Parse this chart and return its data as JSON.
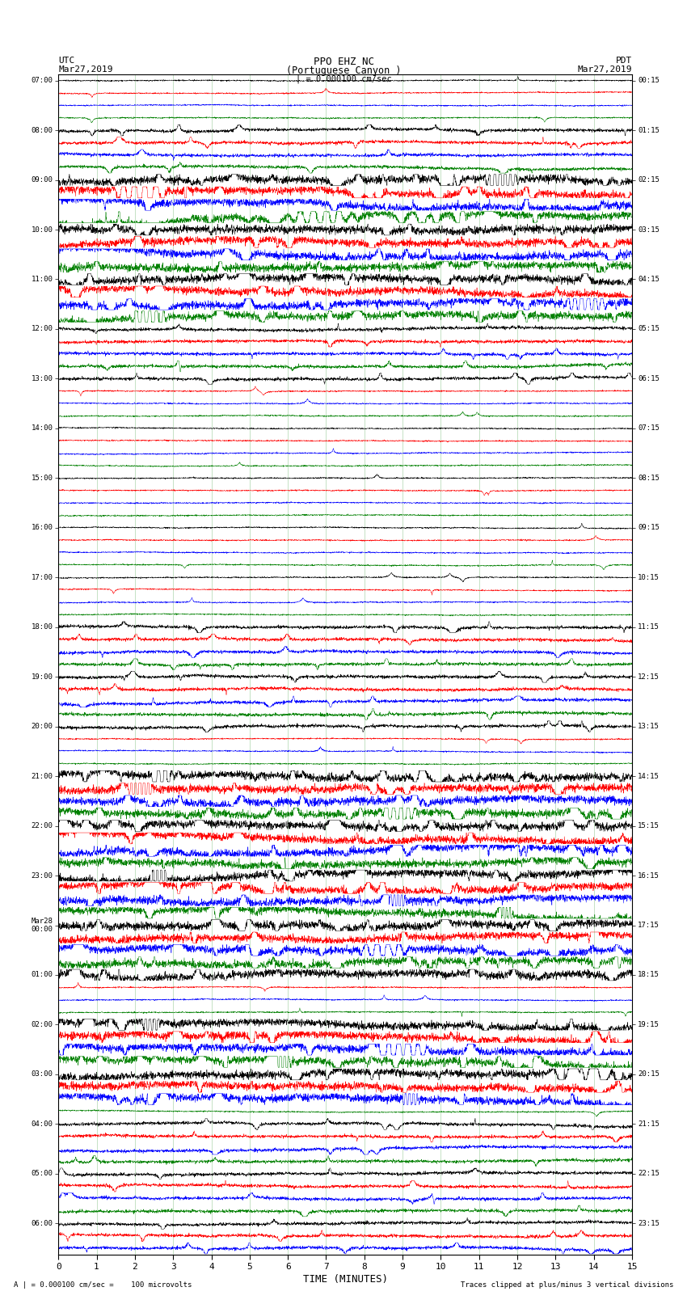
{
  "title_line1": "PPO EHZ NC",
  "title_line2": "(Portuguese Canyon )",
  "title_line3": "| = 0.000100 cm/sec",
  "left_label_line1": "UTC",
  "left_label_line2": "Mar27,2019",
  "right_label_line1": "PDT",
  "right_label_line2": "Mar27,2019",
  "xlabel": "TIME (MINUTES)",
  "footer_left": "A | = 0.000100 cm/sec =    100 microvolts",
  "footer_right": "Traces clipped at plus/minus 3 vertical divisions",
  "utc_times": [
    "07:00",
    "",
    "",
    "",
    "08:00",
    "",
    "",
    "",
    "09:00",
    "",
    "",
    "",
    "10:00",
    "",
    "",
    "",
    "11:00",
    "",
    "",
    "",
    "12:00",
    "",
    "",
    "",
    "13:00",
    "",
    "",
    "",
    "14:00",
    "",
    "",
    "",
    "15:00",
    "",
    "",
    "",
    "16:00",
    "",
    "",
    "",
    "17:00",
    "",
    "",
    "",
    "18:00",
    "",
    "",
    "",
    "19:00",
    "",
    "",
    "",
    "20:00",
    "",
    "",
    "",
    "21:00",
    "",
    "",
    "",
    "22:00",
    "",
    "",
    "",
    "23:00",
    "",
    "",
    "",
    "Mar28\n00:00",
    "",
    "",
    "",
    "01:00",
    "",
    "",
    "",
    "02:00",
    "",
    "",
    "",
    "03:00",
    "",
    "",
    "",
    "04:00",
    "",
    "",
    "",
    "05:00",
    "",
    "",
    "",
    "06:00",
    "",
    ""
  ],
  "pdt_times": [
    "00:15",
    "",
    "",
    "",
    "01:15",
    "",
    "",
    "",
    "02:15",
    "",
    "",
    "",
    "03:15",
    "",
    "",
    "",
    "04:15",
    "",
    "",
    "",
    "05:15",
    "",
    "",
    "",
    "06:15",
    "",
    "",
    "",
    "07:15",
    "",
    "",
    "",
    "08:15",
    "",
    "",
    "",
    "09:15",
    "",
    "",
    "",
    "10:15",
    "",
    "",
    "",
    "11:15",
    "",
    "",
    "",
    "12:15",
    "",
    "",
    "",
    "13:15",
    "",
    "",
    "",
    "14:15",
    "",
    "",
    "",
    "15:15",
    "",
    "",
    "",
    "16:15",
    "",
    "",
    "",
    "17:15",
    "",
    "",
    "",
    "18:15",
    "",
    "",
    "",
    "19:15",
    "",
    "",
    "",
    "20:15",
    "",
    "",
    "",
    "21:15",
    "",
    "",
    "",
    "22:15",
    "",
    "",
    "",
    "23:15",
    "",
    ""
  ],
  "trace_colors": [
    "black",
    "red",
    "blue",
    "green"
  ],
  "n_rows": 95,
  "x_min": 0,
  "x_max": 15,
  "x_ticks": [
    0,
    1,
    2,
    3,
    4,
    5,
    6,
    7,
    8,
    9,
    10,
    11,
    12,
    13,
    14,
    15
  ],
  "background_color": "white",
  "grid_color": "#008000",
  "grid_alpha": 0.4,
  "grid_linewidth": 0.4
}
